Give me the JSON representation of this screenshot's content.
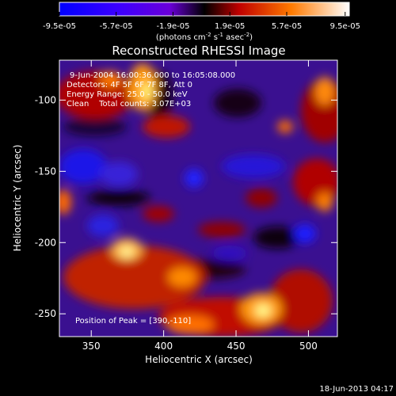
{
  "colorbar": {
    "ticks": [
      "-9.5e-05",
      "-5.7e-05",
      "-1.9e-05",
      "1.9e-05",
      "5.7e-05",
      "9.5e-05"
    ],
    "unit_parts": [
      "(photons cm",
      "-2",
      " s",
      "-1",
      " asec",
      "-2",
      ")"
    ],
    "colors": [
      "#0000ff",
      "#7a00ff",
      "#000000",
      "#d40000",
      "#ff8a00",
      "#ffffff"
    ]
  },
  "chart_data": {
    "type": "heatmap",
    "title": "Reconstructed RHESSI Image",
    "xlabel": "Heliocentric X (arcsec)",
    "ylabel": "Heliocentric Y (arcsec)",
    "xlim": [
      328,
      520
    ],
    "ylim": [
      -266,
      -72
    ],
    "x_ticks": [
      350,
      400,
      450,
      500
    ],
    "y_ticks": [
      -100,
      -150,
      -200,
      -250
    ],
    "info_lines": [
      "9-Jun-2004 16:00:36.000 to 16:05:08.000",
      "Detectors: 4F 5F 6F 7F 8F, Att 0",
      "Energy Range: 25.0 - 50.0 keV",
      "Clean    Total counts: 3.07E+03"
    ],
    "peak_label": "Position of Peak = [390,-110]",
    "value_range": [
      -9.5e-05,
      9.5e-05
    ]
  },
  "footer": {
    "date": "18-Jun-2013 04:17"
  }
}
